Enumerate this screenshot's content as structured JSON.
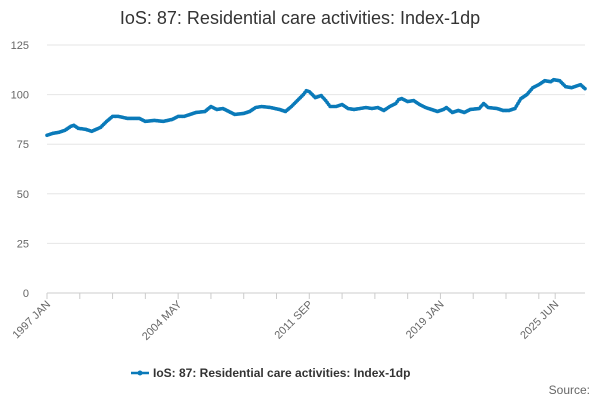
{
  "chart_data": {
    "type": "line",
    "title": "IoS: 87: Residential care activities: Index-1dp",
    "xlabel": "",
    "ylabel": "",
    "ylim": [
      0,
      125
    ],
    "yticks": [
      0,
      25,
      50,
      75,
      100,
      125
    ],
    "x_range_months": [
      0,
      341
    ],
    "x_tick_labels": [
      {
        "label": "1997 JAN",
        "month": 0
      },
      {
        "label": "2004 MAY",
        "month": 88
      },
      {
        "label": "2011 SEP",
        "month": 176
      },
      {
        "label": "2019 JAN",
        "month": 264
      },
      {
        "label": "2025 JUN",
        "month": 341
      }
    ],
    "x_minor_tick_months": [
      22,
      44,
      66,
      110,
      132,
      154,
      198,
      220,
      242,
      286,
      308,
      330
    ],
    "legend": "IoS: 87: Residential care activities: Index-1dp",
    "source": "Source:",
    "colors": {
      "series": "#0a7ab9",
      "grid": "#e6e6e6",
      "axis": "#cccccc"
    },
    "series": [
      {
        "name": "IoS: 87: Residential care activities: Index-1dp",
        "points": [
          [
            0,
            79.5
          ],
          [
            4,
            80.5
          ],
          [
            8,
            81
          ],
          [
            12,
            82
          ],
          [
            16,
            84
          ],
          [
            18,
            84.5
          ],
          [
            21,
            83
          ],
          [
            26,
            82.5
          ],
          [
            30,
            81.5
          ],
          [
            36,
            83.5
          ],
          [
            40,
            86.5
          ],
          [
            44,
            89
          ],
          [
            48,
            89
          ],
          [
            54,
            88
          ],
          [
            62,
            88
          ],
          [
            66,
            86.5
          ],
          [
            72,
            87
          ],
          [
            78,
            86.5
          ],
          [
            84,
            87.5
          ],
          [
            88,
            89
          ],
          [
            92,
            89
          ],
          [
            96,
            90
          ],
          [
            100,
            91
          ],
          [
            106,
            91.5
          ],
          [
            110,
            94
          ],
          [
            114,
            92.5
          ],
          [
            118,
            93
          ],
          [
            122,
            91.5
          ],
          [
            126,
            90
          ],
          [
            132,
            90.5
          ],
          [
            136,
            91.5
          ],
          [
            140,
            93.5
          ],
          [
            144,
            94
          ],
          [
            150,
            93.5
          ],
          [
            156,
            92.5
          ],
          [
            160,
            91.5
          ],
          [
            164,
            94
          ],
          [
            168,
            97
          ],
          [
            172,
            100
          ],
          [
            174,
            102
          ],
          [
            176,
            101.5
          ],
          [
            180,
            98.5
          ],
          [
            182,
            99
          ],
          [
            184,
            99.5
          ],
          [
            187,
            97
          ],
          [
            190,
            94
          ],
          [
            194,
            94
          ],
          [
            198,
            95
          ],
          [
            202,
            93
          ],
          [
            206,
            92.5
          ],
          [
            210,
            93
          ],
          [
            214,
            93.5
          ],
          [
            218,
            93
          ],
          [
            222,
            93.5
          ],
          [
            226,
            92
          ],
          [
            230,
            94
          ],
          [
            234,
            95.5
          ],
          [
            236,
            97.5
          ],
          [
            238,
            98
          ],
          [
            242,
            96.5
          ],
          [
            246,
            97
          ],
          [
            250,
            95
          ],
          [
            254,
            93.5
          ],
          [
            258,
            92.5
          ],
          [
            262,
            91.5
          ],
          [
            266,
            92.5
          ],
          [
            268,
            93.5
          ],
          [
            272,
            91
          ],
          [
            276,
            92
          ],
          [
            280,
            91
          ],
          [
            284,
            92.5
          ],
          [
            290,
            93
          ],
          [
            293,
            95.5
          ],
          [
            296,
            93.5
          ],
          [
            302,
            93
          ],
          [
            306,
            92
          ],
          [
            310,
            92
          ],
          [
            314,
            93
          ],
          [
            318,
            98
          ],
          [
            322,
            100
          ],
          [
            326,
            103.5
          ],
          [
            330,
            105
          ],
          [
            334,
            107
          ],
          [
            338,
            106.5
          ],
          [
            340,
            107.5
          ],
          [
            344,
            107
          ],
          [
            348,
            104
          ],
          [
            352,
            103.5
          ],
          [
            356,
            104.5
          ],
          [
            358,
            105
          ],
          [
            361,
            103
          ]
        ]
      }
    ]
  }
}
